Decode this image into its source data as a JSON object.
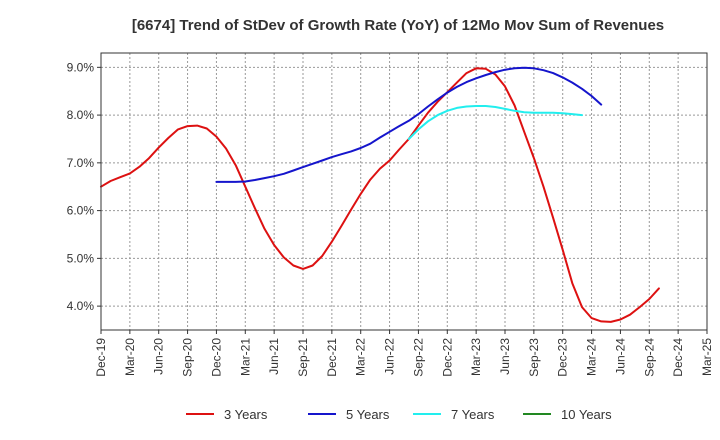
{
  "chart_data": {
    "type": "line",
    "title": "[6674]  Trend of StDev of Growth Rate (YoY) of 12Mo Mov Sum of Revenues",
    "xlabel": "",
    "ylabel": "",
    "ylim": [
      3.5,
      9.3
    ],
    "y_ticks": [
      4.0,
      5.0,
      6.0,
      7.0,
      8.0,
      9.0
    ],
    "y_tick_labels": [
      "4.0%",
      "5.0%",
      "6.0%",
      "7.0%",
      "8.0%",
      "9.0%"
    ],
    "x_range": [
      0,
      63
    ],
    "x_tick_positions": [
      0,
      3,
      6,
      9,
      12,
      15,
      18,
      21,
      24,
      27,
      30,
      33,
      36,
      39,
      42,
      45,
      48,
      51,
      54,
      57,
      60,
      63
    ],
    "x_tick_labels": [
      "Dec-19",
      "Mar-20",
      "Jun-20",
      "Sep-20",
      "Dec-20",
      "Mar-21",
      "Jun-21",
      "Sep-21",
      "Dec-21",
      "Mar-22",
      "Jun-22",
      "Sep-22",
      "Dec-22",
      "Mar-23",
      "Jun-23",
      "Sep-23",
      "Dec-23",
      "Mar-24",
      "Jun-24",
      "Sep-24",
      "Dec-24",
      "Mar-25"
    ],
    "grid": "dashed",
    "legend_position": "bottom",
    "series": [
      {
        "name": "3 Years",
        "color": "#dd1111",
        "points": [
          [
            0,
            6.5
          ],
          [
            1,
            6.62
          ],
          [
            2,
            6.7
          ],
          [
            3,
            6.78
          ],
          [
            4,
            6.92
          ],
          [
            5,
            7.1
          ],
          [
            6,
            7.32
          ],
          [
            7,
            7.52
          ],
          [
            8,
            7.7
          ],
          [
            9,
            7.77
          ],
          [
            10,
            7.78
          ],
          [
            11,
            7.72
          ],
          [
            12,
            7.55
          ],
          [
            13,
            7.3
          ],
          [
            14,
            6.95
          ],
          [
            15,
            6.5
          ],
          [
            16,
            6.05
          ],
          [
            17,
            5.62
          ],
          [
            18,
            5.28
          ],
          [
            19,
            5.02
          ],
          [
            20,
            4.85
          ],
          [
            21,
            4.78
          ],
          [
            22,
            4.85
          ],
          [
            23,
            5.05
          ],
          [
            24,
            5.35
          ],
          [
            25,
            5.68
          ],
          [
            26,
            6.02
          ],
          [
            27,
            6.35
          ],
          [
            28,
            6.65
          ],
          [
            29,
            6.88
          ],
          [
            30,
            7.05
          ],
          [
            31,
            7.28
          ],
          [
            32,
            7.5
          ],
          [
            33,
            7.78
          ],
          [
            34,
            8.05
          ],
          [
            35,
            8.28
          ],
          [
            36,
            8.48
          ],
          [
            37,
            8.68
          ],
          [
            38,
            8.88
          ],
          [
            39,
            8.98
          ],
          [
            40,
            8.97
          ],
          [
            41,
            8.85
          ],
          [
            42,
            8.6
          ],
          [
            43,
            8.2
          ],
          [
            44,
            7.65
          ],
          [
            45,
            7.1
          ],
          [
            46,
            6.5
          ],
          [
            47,
            5.85
          ],
          [
            48,
            5.18
          ],
          [
            49,
            4.48
          ],
          [
            50,
            3.98
          ],
          [
            51,
            3.75
          ],
          [
            52,
            3.68
          ],
          [
            53,
            3.67
          ],
          [
            54,
            3.72
          ],
          [
            55,
            3.82
          ],
          [
            56,
            3.98
          ],
          [
            57,
            4.15
          ],
          [
            58,
            4.37
          ]
        ]
      },
      {
        "name": "5 Years",
        "color": "#1515cc",
        "points": [
          [
            12,
            6.6
          ],
          [
            13,
            6.6
          ],
          [
            14,
            6.6
          ],
          [
            15,
            6.61
          ],
          [
            16,
            6.64
          ],
          [
            17,
            6.68
          ],
          [
            18,
            6.72
          ],
          [
            19,
            6.77
          ],
          [
            20,
            6.84
          ],
          [
            21,
            6.91
          ],
          [
            22,
            6.98
          ],
          [
            23,
            7.05
          ],
          [
            24,
            7.12
          ],
          [
            25,
            7.18
          ],
          [
            26,
            7.24
          ],
          [
            27,
            7.31
          ],
          [
            28,
            7.4
          ],
          [
            29,
            7.53
          ],
          [
            30,
            7.65
          ],
          [
            31,
            7.77
          ],
          [
            32,
            7.88
          ],
          [
            33,
            8.02
          ],
          [
            34,
            8.18
          ],
          [
            35,
            8.33
          ],
          [
            36,
            8.47
          ],
          [
            37,
            8.59
          ],
          [
            38,
            8.69
          ],
          [
            39,
            8.77
          ],
          [
            40,
            8.84
          ],
          [
            41,
            8.9
          ],
          [
            42,
            8.95
          ],
          [
            43,
            8.98
          ],
          [
            44,
            8.99
          ],
          [
            45,
            8.98
          ],
          [
            46,
            8.94
          ],
          [
            47,
            8.88
          ],
          [
            48,
            8.79
          ],
          [
            49,
            8.68
          ],
          [
            50,
            8.55
          ],
          [
            51,
            8.4
          ],
          [
            52,
            8.22
          ]
        ]
      },
      {
        "name": "7 Years",
        "color": "#22eeee",
        "points": [
          [
            32,
            7.5
          ],
          [
            33,
            7.7
          ],
          [
            34,
            7.87
          ],
          [
            35,
            8.0
          ],
          [
            36,
            8.09
          ],
          [
            37,
            8.15
          ],
          [
            38,
            8.18
          ],
          [
            39,
            8.19
          ],
          [
            40,
            8.19
          ],
          [
            41,
            8.17
          ],
          [
            42,
            8.13
          ],
          [
            43,
            8.09
          ],
          [
            44,
            8.06
          ],
          [
            45,
            8.05
          ],
          [
            46,
            8.05
          ],
          [
            47,
            8.05
          ],
          [
            48,
            8.04
          ],
          [
            49,
            8.02
          ],
          [
            50,
            8.0
          ]
        ]
      },
      {
        "name": "10 Years",
        "color": "#228822",
        "points": []
      }
    ]
  }
}
